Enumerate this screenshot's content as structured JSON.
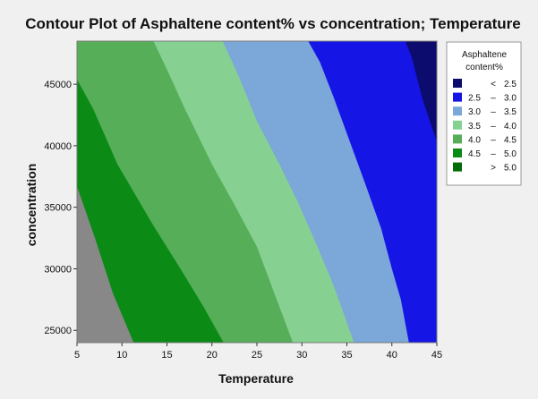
{
  "chart_data": {
    "type": "contour",
    "title": "Contour Plot of Asphaltene content% vs concentration; Temperature",
    "xlabel": "Temperature",
    "ylabel": "concentration",
    "xlim": [
      5,
      45
    ],
    "ylim": [
      24000,
      48500
    ],
    "xticks": [
      5,
      10,
      15,
      20,
      25,
      30,
      35,
      40,
      45
    ],
    "yticks": [
      25000,
      30000,
      35000,
      40000,
      45000
    ],
    "legend": {
      "title_line1": "Asphaltene",
      "title_line2": "content%",
      "placement": "right",
      "levels": [
        {
          "op": "<",
          "lo": "",
          "hi": "2.5",
          "color": "#0c0c6e"
        },
        {
          "op": "–",
          "lo": "2.5",
          "hi": "3.0",
          "color": "#1515e6"
        },
        {
          "op": "–",
          "lo": "3.0",
          "hi": "3.5",
          "color": "#7ba7d9"
        },
        {
          "op": "–",
          "lo": "3.5",
          "hi": "4.0",
          "color": "#86d192"
        },
        {
          "op": "–",
          "lo": "4.0",
          "hi": "4.5",
          "color": "#56ae58"
        },
        {
          "op": "–",
          "lo": "4.5",
          "hi": "5.0",
          "color": "#0b8a16"
        },
        {
          "op": ">",
          "lo": "",
          "hi": "5.0",
          "color": "#036b0a"
        }
      ]
    },
    "contours": [
      {
        "level": 5.0,
        "points": [
          [
            5,
            36700
          ],
          [
            7,
            32500
          ],
          [
            9,
            28000
          ],
          [
            11.3,
            24000
          ]
        ]
      },
      {
        "level": 4.5,
        "points": [
          [
            5,
            45400
          ],
          [
            6.8,
            43000
          ],
          [
            9.5,
            38500
          ],
          [
            13.5,
            33500
          ],
          [
            16.5,
            30000
          ],
          [
            19,
            27000
          ],
          [
            21.3,
            24000
          ]
        ]
      },
      {
        "level": 4.0,
        "points": [
          [
            13.5,
            48500
          ],
          [
            15,
            46200
          ],
          [
            17,
            43000
          ],
          [
            20,
            38500
          ],
          [
            22.5,
            35200
          ],
          [
            25,
            31800
          ],
          [
            27.2,
            27500
          ],
          [
            29,
            24000
          ]
        ]
      },
      {
        "level": 3.5,
        "points": [
          [
            21.2,
            48500
          ],
          [
            23,
            45600
          ],
          [
            25,
            42000
          ],
          [
            27.5,
            38500
          ],
          [
            29.5,
            35500
          ],
          [
            31.5,
            32200
          ],
          [
            33.5,
            28700
          ],
          [
            35.8,
            24000
          ]
        ]
      },
      {
        "level": 3.0,
        "points": [
          [
            30.7,
            48500
          ],
          [
            32,
            46800
          ],
          [
            33.5,
            44000
          ],
          [
            35,
            41000
          ],
          [
            37,
            37000
          ],
          [
            38.8,
            33300
          ],
          [
            40,
            30000
          ],
          [
            41,
            27500
          ],
          [
            41.9,
            24000
          ]
        ]
      },
      {
        "level": 2.5,
        "points": [
          [
            41.5,
            48500
          ],
          [
            42.2,
            47200
          ],
          [
            43.4,
            43800
          ],
          [
            45,
            40300
          ]
        ]
      }
    ]
  }
}
